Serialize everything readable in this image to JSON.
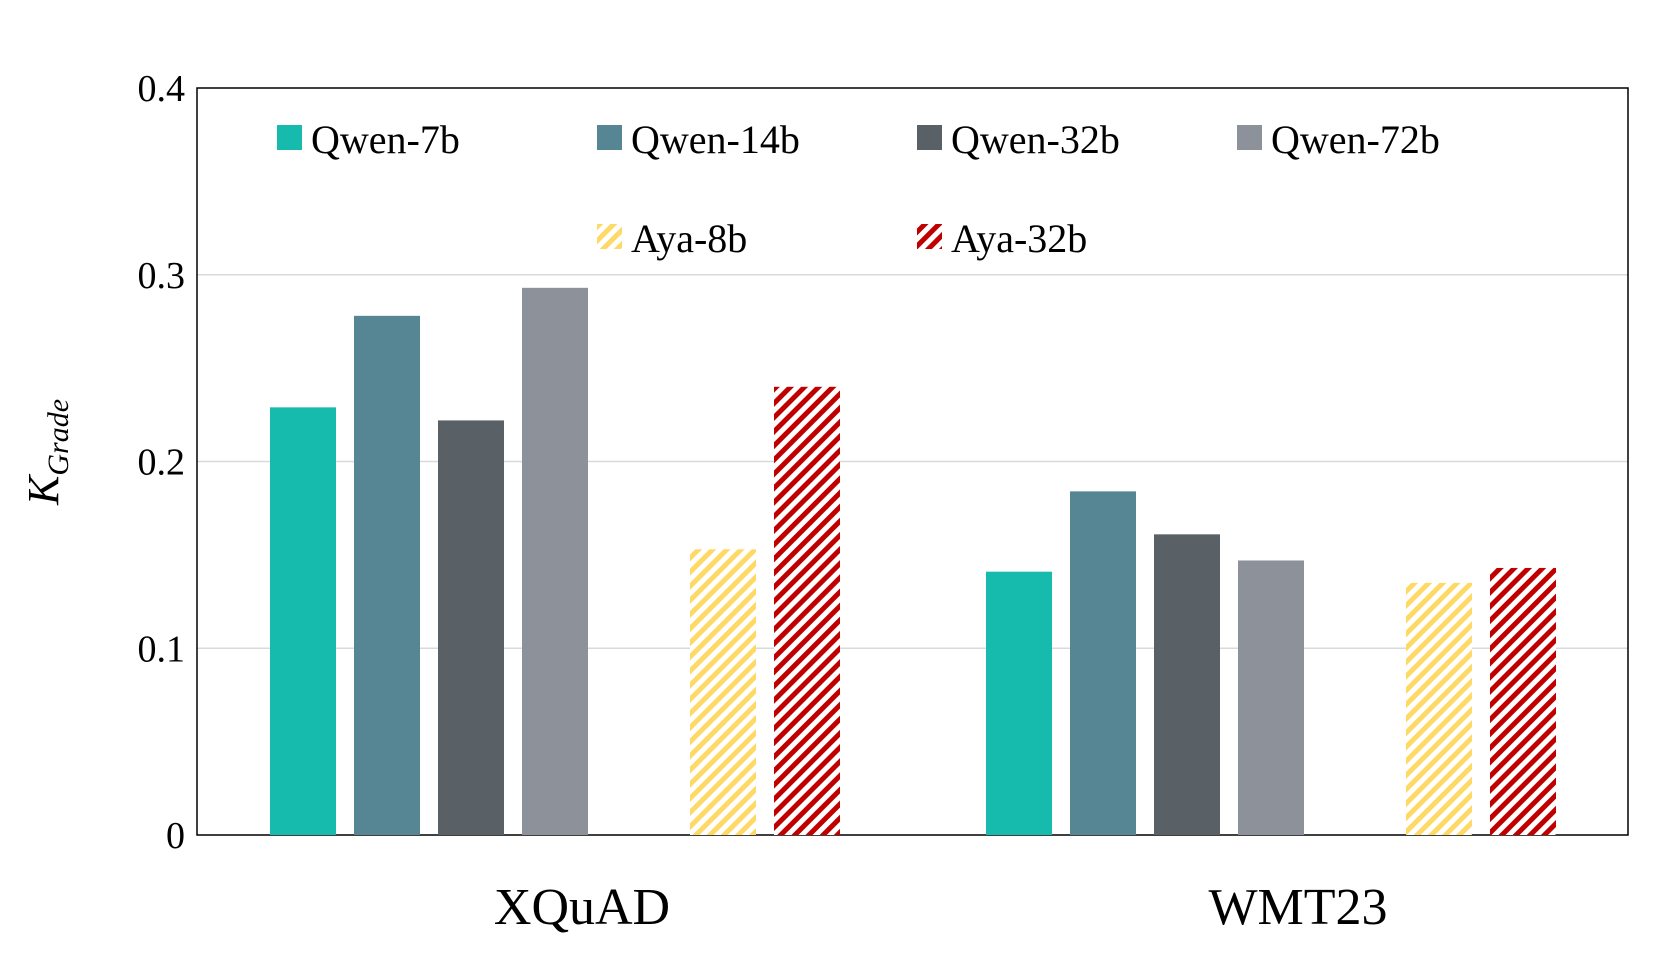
{
  "chart_data": {
    "type": "bar",
    "title": "",
    "xlabel": "",
    "ylabel": "K",
    "ylabel_subscript": "Grade",
    "ylim": [
      0,
      0.4
    ],
    "yticks": [
      "0",
      "0.1",
      "0.2",
      "0.3",
      "0.4"
    ],
    "ytick_values": [
      0,
      0.1,
      0.2,
      0.3,
      0.4
    ],
    "grid": true,
    "legend_position": "top-inside",
    "categories": [
      "XQuAD",
      "WMT23"
    ],
    "series": [
      {
        "name": "Qwen-7b",
        "values": [
          0.229,
          0.141
        ],
        "color": "#17bbad",
        "pattern": "solid"
      },
      {
        "name": "Qwen-14b",
        "values": [
          0.278,
          0.184
        ],
        "color": "#568593",
        "pattern": "solid"
      },
      {
        "name": "Qwen-32b",
        "values": [
          0.222,
          0.161
        ],
        "color": "#5a6166",
        "pattern": "solid"
      },
      {
        "name": "Qwen-72b",
        "values": [
          0.293,
          0.147
        ],
        "color": "#8d9199",
        "pattern": "solid"
      },
      {
        "name": "Aya-8b",
        "values": [
          0.153,
          0.135
        ],
        "color": "#ffd966",
        "pattern": "hatch"
      },
      {
        "name": "Aya-32b",
        "values": [
          0.24,
          0.143
        ],
        "color": "#c00000",
        "pattern": "hatch"
      }
    ]
  }
}
